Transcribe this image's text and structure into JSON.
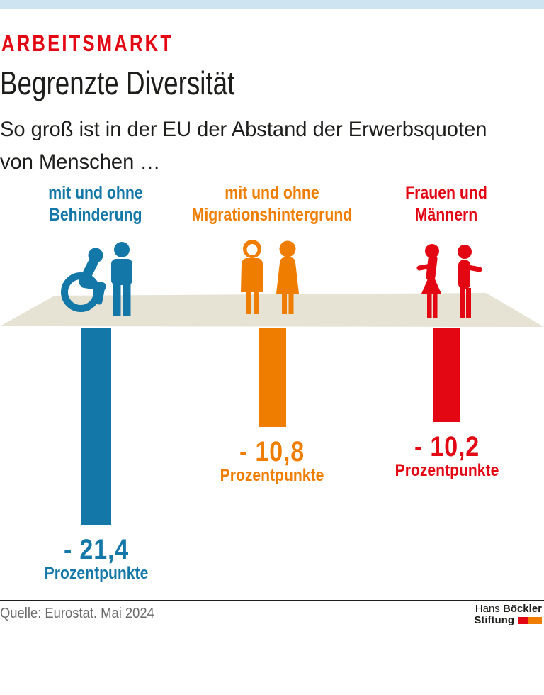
{
  "page": {
    "background": "#ffffff",
    "top_strip_color": "#cee4f0"
  },
  "header": {
    "kicker": "ARBEITSMARKT",
    "kicker_color": "#e30613",
    "title": "Begrenzte Diversität",
    "subtitle_line1": "So groß ist in der EU der Abstand der Erwerbsquoten",
    "subtitle_line2": "von Menschen …"
  },
  "chart_data": {
    "type": "bar",
    "title": "Begrenzte Diversität",
    "subtitle": "So groß ist in der EU der Abstand der Erwerbsquoten von Menschen …",
    "unit": "Prozentpunkte",
    "baseline": 0,
    "bar_direction": "down",
    "grid": false,
    "legend": false,
    "platform_color": "#e6e2d4",
    "categories": [
      "mit und ohne Behinderung",
      "mit und ohne Migrationshintergrund",
      "Frauen und Männern"
    ],
    "values": [
      -21.4,
      -10.8,
      -10.2
    ],
    "series": [
      {
        "label_line1": "mit und ohne",
        "label_line2": "Behinderung",
        "value": -21.4,
        "value_label": "- 21,4",
        "unit_label": "Prozentpunkte",
        "color": "#1378a8",
        "icon": "wheelchair-user-and-standing-person-icon"
      },
      {
        "label_line1": "mit und ohne",
        "label_line2": "Migrationshintergrund",
        "value": -10.8,
        "value_label": "- 10,8",
        "unit_label": "Prozentpunkte",
        "color": "#ef7d00",
        "icon": "two-women-one-with-headscarf-icon"
      },
      {
        "label_line1": "Frauen und",
        "label_line2": "Männern",
        "value": -10.2,
        "value_label": "- 10,2",
        "unit_label": "Prozentpunkte",
        "color": "#e30613",
        "icon": "woman-and-man-back-to-back-icon"
      }
    ]
  },
  "footer": {
    "source": "Quelle: Eurostat. Mai 2024",
    "logo": {
      "line1_regular": "Hans",
      "line1_bold": "Böckler",
      "line2_bold": "Stiftung",
      "square_colors": [
        "#e30613",
        "#ef7d00"
      ]
    }
  }
}
